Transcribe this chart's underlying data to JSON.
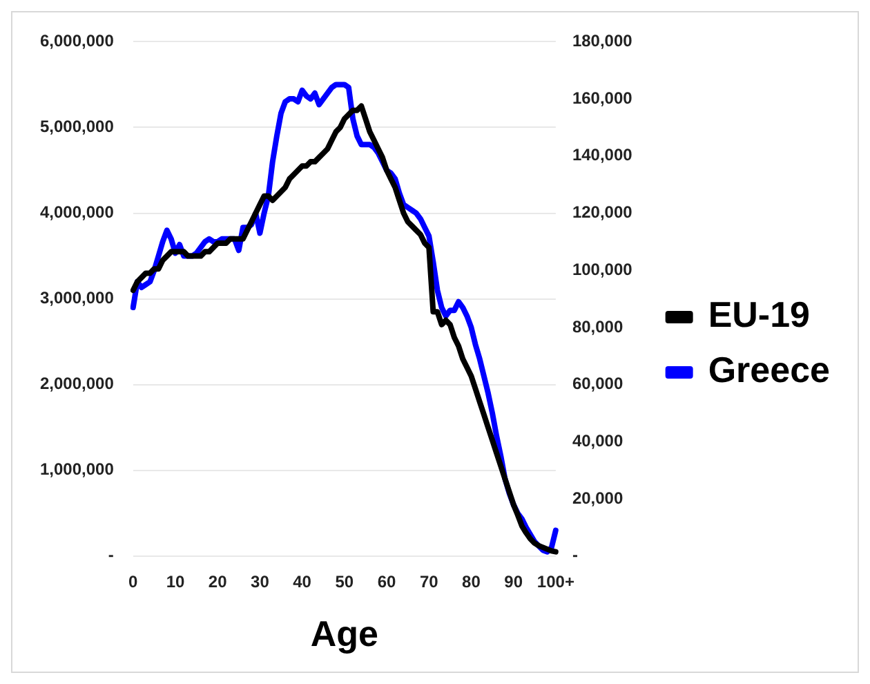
{
  "chart_data": {
    "type": "line",
    "xlabel": "Age",
    "categories": [
      "0",
      null,
      null,
      null,
      null,
      null,
      null,
      null,
      null,
      null,
      "10",
      null,
      null,
      null,
      null,
      null,
      null,
      null,
      null,
      null,
      "20",
      null,
      null,
      null,
      null,
      null,
      null,
      null,
      null,
      null,
      "30",
      null,
      null,
      null,
      null,
      null,
      null,
      null,
      null,
      null,
      "40",
      null,
      null,
      null,
      null,
      null,
      null,
      null,
      null,
      null,
      "50",
      null,
      null,
      null,
      null,
      null,
      null,
      null,
      null,
      null,
      "60",
      null,
      null,
      null,
      null,
      null,
      null,
      null,
      null,
      null,
      "70",
      null,
      null,
      null,
      null,
      null,
      null,
      null,
      null,
      null,
      "80",
      null,
      null,
      null,
      null,
      null,
      null,
      null,
      null,
      null,
      "90",
      null,
      null,
      null,
      null,
      null,
      null,
      null,
      null,
      null,
      "100+"
    ],
    "series": [
      {
        "name": "EU-19",
        "color": "#000000",
        "values": [
          3100000,
          3200000,
          3250000,
          3300000,
          3300000,
          3350000,
          3350000,
          3450000,
          3500000,
          3550000,
          3550000,
          3550000,
          3550000,
          3500000,
          3500000,
          3500000,
          3500000,
          3550000,
          3550000,
          3600000,
          3650000,
          3650000,
          3650000,
          3700000,
          3700000,
          3700000,
          3700000,
          3800000,
          3900000,
          4000000,
          4100000,
          4200000,
          4200000,
          4150000,
          4200000,
          4250000,
          4300000,
          4400000,
          4450000,
          4500000,
          4550000,
          4550000,
          4600000,
          4600000,
          4650000,
          4700000,
          4750000,
          4850000,
          4950000,
          5000000,
          5100000,
          5150000,
          5200000,
          5200000,
          5250000,
          5100000,
          4950000,
          4850000,
          4750000,
          4650000,
          4500000,
          4400000,
          4300000,
          4150000,
          4000000,
          3900000,
          3850000,
          3800000,
          3750000,
          3650000,
          3600000,
          2850000,
          2850000,
          2700000,
          2750000,
          2700000,
          2550000,
          2450000,
          2300000,
          2200000,
          2100000,
          1950000,
          1800000,
          1650000,
          1500000,
          1350000,
          1200000,
          1050000,
          900000,
          750000,
          600000,
          480000,
          350000,
          270000,
          200000,
          150000,
          120000,
          100000,
          80000,
          60000,
          50000
        ]
      },
      {
        "name": "Greece",
        "color": "#0000ff",
        "axis": "y2",
        "values": [
          87000,
          96000,
          94000,
          95000,
          96000,
          100000,
          105000,
          110000,
          114000,
          111000,
          106000,
          109000,
          105000,
          105000,
          105000,
          106000,
          108000,
          110000,
          111000,
          110000,
          110000,
          111000,
          111000,
          111000,
          111000,
          107000,
          115000,
          115000,
          116000,
          120000,
          113000,
          120000,
          126000,
          138000,
          147000,
          155000,
          159000,
          160000,
          160000,
          159000,
          163000,
          161000,
          160000,
          162000,
          158000,
          160000,
          162000,
          164000,
          165000,
          165000,
          165000,
          164000,
          153000,
          147000,
          144000,
          144000,
          144000,
          143000,
          141000,
          138000,
          135000,
          134000,
          132000,
          127000,
          123000,
          122000,
          121000,
          120000,
          118000,
          115000,
          112000,
          103000,
          93000,
          87000,
          84000,
          86000,
          86000,
          89000,
          87000,
          84000,
          80000,
          74000,
          69000,
          63000,
          57000,
          50000,
          42000,
          35000,
          27000,
          22000,
          18000,
          15000,
          13000,
          10000,
          7500,
          5000,
          3500,
          2000,
          1500,
          3000,
          9000
        ]
      }
    ],
    "ylim": [
      0,
      6000000
    ],
    "yticks": [
      {
        "value": 0,
        "label": "-"
      },
      {
        "value": 1000000,
        "label": "1,000,000"
      },
      {
        "value": 2000000,
        "label": "2,000,000"
      },
      {
        "value": 3000000,
        "label": "3,000,000"
      },
      {
        "value": 4000000,
        "label": "4,000,000"
      },
      {
        "value": 5000000,
        "label": "5,000,000"
      },
      {
        "value": 6000000,
        "label": "6,000,000"
      }
    ],
    "y2lim": [
      0,
      180000
    ],
    "y2ticks": [
      {
        "value": 0,
        "label": "-"
      },
      {
        "value": 20000,
        "label": "20,000"
      },
      {
        "value": 40000,
        "label": "40,000"
      },
      {
        "value": 60000,
        "label": "60,000"
      },
      {
        "value": 80000,
        "label": "80,000"
      },
      {
        "value": 100000,
        "label": "100,000"
      },
      {
        "value": 120000,
        "label": "120,000"
      },
      {
        "value": 140000,
        "label": "140,000"
      },
      {
        "value": 160000,
        "label": "160,000"
      },
      {
        "value": 180000,
        "label": "180,000"
      }
    ],
    "grid": "y",
    "legend": "right",
    "marker": "none",
    "line_style": "solid"
  }
}
